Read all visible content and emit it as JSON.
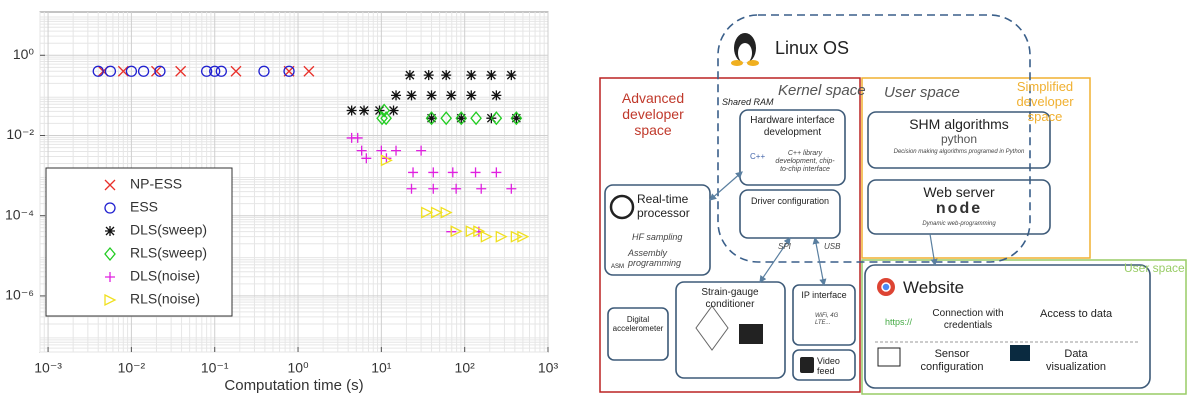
{
  "chart_data": {
    "type": "scatter",
    "xlabel": "Computation time (s)",
    "xscale": "log",
    "yscale": "log",
    "xlim": [
      0.0008,
      1000
    ],
    "ylim": [
      4e-08,
      12
    ],
    "xticks": [
      {
        "value": 0.001,
        "label": "10⁻³"
      },
      {
        "value": 0.01,
        "label": "10⁻²"
      },
      {
        "value": 0.1,
        "label": "10⁻¹"
      },
      {
        "value": 1,
        "label": "10⁰"
      },
      {
        "value": 10,
        "label": "10¹"
      },
      {
        "value": 100,
        "label": "10²"
      },
      {
        "value": 1000,
        "label": "10³"
      }
    ],
    "yticks": [
      {
        "value": 1e-06,
        "label": "10⁻⁶"
      },
      {
        "value": 0.0001,
        "label": "10⁻⁴"
      },
      {
        "value": 0.01,
        "label": "10⁻²"
      },
      {
        "value": 1,
        "label": "10⁰"
      }
    ],
    "grid": true,
    "minor_grid": true,
    "legend": "lower left",
    "series": [
      {
        "name": "NP-ESS",
        "color": "#e8302a",
        "marker": "x",
        "x": [
          0.0046,
          0.008,
          0.02,
          0.039,
          0.18,
          0.78,
          1.35
        ],
        "values": [
          0.4,
          0.4,
          0.4,
          0.4,
          0.4,
          0.4,
          0.4
        ]
      },
      {
        "name": "ESS",
        "color": "#2020d0",
        "marker": "o",
        "x": [
          0.004,
          0.0056,
          0.01,
          0.014,
          0.022,
          0.08,
          0.1,
          0.12,
          0.39,
          0.78
        ],
        "values": [
          0.4,
          0.4,
          0.4,
          0.4,
          0.4,
          0.4,
          0.4,
          0.4,
          0.4,
          0.4
        ]
      },
      {
        "name": "DLS(sweep)",
        "color": "#111111",
        "marker": "*",
        "x": [
          22,
          37,
          60,
          120,
          209,
          363,
          15,
          23,
          40,
          69,
          120,
          240,
          4.4,
          6.2,
          9.5,
          14,
          40,
          91,
          209,
          417
        ],
        "values": [
          0.32,
          0.32,
          0.32,
          0.32,
          0.32,
          0.32,
          0.1,
          0.1,
          0.1,
          0.1,
          0.1,
          0.1,
          0.042,
          0.042,
          0.042,
          0.042,
          0.027,
          0.027,
          0.027,
          0.027
        ]
      },
      {
        "name": "RLS(sweep)",
        "color": "#22cc22",
        "marker": "d",
        "x": [
          10.2,
          11.4,
          40,
          60,
          91,
          137,
          240,
          417,
          10.8
        ],
        "values": [
          0.027,
          0.027,
          0.027,
          0.027,
          0.027,
          0.027,
          0.027,
          0.027,
          0.042
        ]
      },
      {
        "name": "DLS(noise)",
        "color": "#e020e0",
        "marker": "+",
        "x": [
          4.4,
          5.2,
          5.8,
          10,
          15,
          30,
          6.6,
          11.5,
          24,
          42,
          72,
          135,
          240,
          23,
          42,
          79,
          158,
          363,
          69,
          148
        ],
        "values": [
          0.0087,
          0.0087,
          0.0042,
          0.0042,
          0.0042,
          0.0042,
          0.0027,
          0.0027,
          0.0012,
          0.0012,
          0.0012,
          0.0012,
          0.0012,
          0.00047,
          0.00047,
          0.00047,
          0.00047,
          0.00047,
          4e-05,
          4e-05
        ]
      },
      {
        "name": "RLS(noise)",
        "color": "#f0e020",
        "marker": ">",
        "x": [
          11.5,
          35,
          46,
          60,
          79,
          120,
          148,
          182,
          275,
          417,
          500
        ],
        "values": [
          0.0024,
          0.00012,
          0.00012,
          0.00012,
          4.1e-05,
          4.1e-05,
          4.1e-05,
          3e-05,
          3e-05,
          3e-05,
          3e-05
        ]
      }
    ]
  },
  "diagram": {
    "linux_os": "Linux OS",
    "kernel_space": "Kernel space",
    "shared_ram": "Shared RAM",
    "user_space": "User space",
    "advanced_space": "Advanced developer space",
    "simplified_space": "Simplified developer space",
    "user_space_web": "User space",
    "hardware": {
      "title": "Hardware interface development",
      "icon": "C++",
      "note": "C++ library development, chip-to-chip interface"
    },
    "driver": {
      "title": "Driver configuration",
      "spi": "SPI",
      "usb": "USB"
    },
    "shm": {
      "title": "SHM algorithms",
      "logo": "python",
      "note": "Decision making algorithms programed in Python"
    },
    "web_server": {
      "title": "Web server",
      "logo": "node",
      "note": "Dynamic web-programming"
    },
    "processor": {
      "title": "Real-time processor",
      "sampling": "HF sampling",
      "assembly": "Assembly programming",
      "asm": "ASM"
    },
    "conditioner": "Strain-gauge conditioner",
    "accelerometer": "Digital accelerometer",
    "ip": {
      "title": "IP interface",
      "note": "WiFi, 4G LTE..."
    },
    "video": "Video feed",
    "website": {
      "title": "Website",
      "https": "https://",
      "login": "Connection with credentials",
      "access": "Access to data",
      "sensor": "Sensor configuration",
      "viz": "Data visualization"
    }
  }
}
